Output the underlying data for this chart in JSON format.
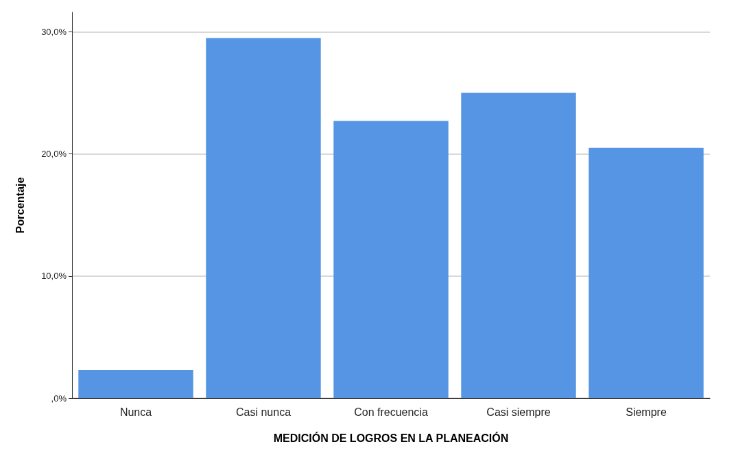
{
  "chart_data": {
    "type": "bar",
    "xlabel": "MEDICIÓN DE LOGROS EN LA PLANEACIÓN",
    "ylabel": "Porcentaje",
    "categories": [
      "Nunca",
      "Casi nunca",
      "Con frecuencia",
      "Casi siempre",
      "Siempre"
    ],
    "values": [
      2.3,
      29.5,
      22.7,
      25.0,
      20.5
    ],
    "color": "#5595e3",
    "ylim": [
      0,
      31.6
    ],
    "yticks": [
      {
        "value": 0,
        "label": ",0%"
      },
      {
        "value": 10,
        "label": "10,0%"
      },
      {
        "value": 20,
        "label": "20,0%"
      },
      {
        "value": 30,
        "label": "30,0%"
      }
    ],
    "grid": "y"
  }
}
